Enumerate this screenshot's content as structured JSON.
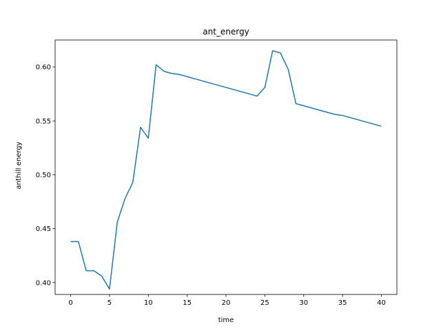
{
  "chart_data": {
    "type": "line",
    "title": "ant_energy",
    "xlabel": "time",
    "ylabel": "anthill energy",
    "xlim": [
      -2,
      42
    ],
    "ylim": [
      0.389,
      0.625
    ],
    "xticks": [
      0,
      5,
      10,
      15,
      20,
      25,
      30,
      35,
      40
    ],
    "yticks": [
      0.4,
      0.45,
      0.5,
      0.55,
      0.6
    ],
    "ytick_labels": [
      "0.40",
      "0.45",
      "0.50",
      "0.55",
      "0.60"
    ],
    "grid": false,
    "line_color": "#1f77b4",
    "series": [
      {
        "x": [
          0,
          1,
          2,
          3,
          4,
          5,
          6,
          7,
          8,
          9,
          10,
          11,
          12,
          13,
          14,
          15,
          16,
          17,
          18,
          19,
          20,
          21,
          22,
          23,
          24,
          25,
          26,
          27,
          28,
          29,
          30,
          31,
          32,
          33,
          34,
          35,
          36,
          37,
          38,
          39,
          40
        ],
        "y": [
          0.438,
          0.438,
          0.411,
          0.411,
          0.406,
          0.394,
          0.456,
          0.478,
          0.493,
          0.544,
          0.534,
          0.602,
          0.596,
          0.594,
          0.593,
          0.591,
          0.589,
          0.587,
          0.585,
          0.583,
          0.581,
          0.579,
          0.577,
          0.575,
          0.573,
          0.581,
          0.615,
          0.613,
          0.598,
          0.566,
          0.564,
          0.562,
          0.56,
          0.558,
          0.556,
          0.555,
          0.553,
          0.551,
          0.549,
          0.547,
          0.545
        ]
      }
    ]
  }
}
